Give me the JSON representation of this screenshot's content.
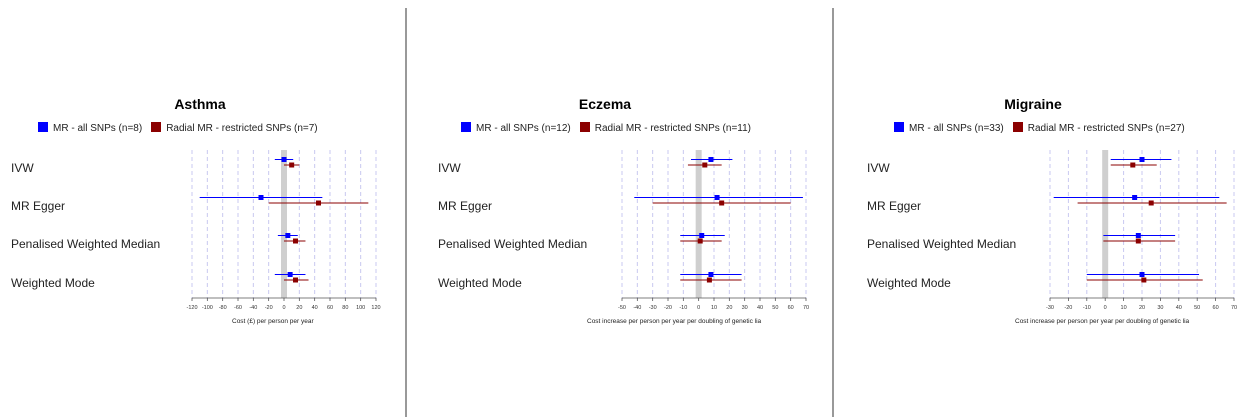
{
  "legend": {
    "series1_color": "#0000ff",
    "series2_color": "#8b0000"
  },
  "methods": [
    "IVW",
    "MR Egger",
    "Penalised Weighted Median",
    "Weighted Mode"
  ],
  "chart_data": [
    {
      "type": "forest",
      "title": "Asthma",
      "xlabel": "Cost (£) per person per year",
      "xlim": [
        -120,
        120
      ],
      "xticks": [
        -120,
        -100,
        -80,
        -60,
        -40,
        -20,
        0,
        20,
        40,
        60,
        80,
        100,
        120
      ],
      "reference_line": 0,
      "grid": true,
      "series": [
        {
          "name": "MR - all SNPs (n=8)",
          "color": "#0000ff",
          "estimates": [
            0,
            -30,
            5,
            8
          ],
          "lower": [
            -12,
            -110,
            -8,
            -12
          ],
          "upper": [
            12,
            50,
            18,
            28
          ]
        },
        {
          "name": "Radial MR - restricted SNPs (n=7)",
          "color": "#8b0000",
          "estimates": [
            10,
            45,
            15,
            15
          ],
          "lower": [
            0,
            -20,
            0,
            0
          ],
          "upper": [
            20,
            110,
            28,
            32
          ]
        }
      ]
    },
    {
      "type": "forest",
      "title": "Eczema",
      "xlabel": "Cost increase per person per year per doubling of genetic lia",
      "xlim": [
        -50,
        70
      ],
      "xticks": [
        -50,
        -40,
        -30,
        -20,
        -10,
        0,
        10,
        20,
        30,
        40,
        50,
        60,
        70
      ],
      "reference_line": 0,
      "grid": true,
      "series": [
        {
          "name": "MR - all SNPs (n=12)",
          "color": "#0000ff",
          "estimates": [
            8,
            12,
            2,
            8
          ],
          "lower": [
            -5,
            -42,
            -12,
            -12
          ],
          "upper": [
            22,
            68,
            17,
            28
          ]
        },
        {
          "name": "Radial MR - restricted SNPs (n=11)",
          "color": "#8b0000",
          "estimates": [
            4,
            15,
            1,
            7
          ],
          "lower": [
            -7,
            -30,
            -12,
            -12
          ],
          "upper": [
            15,
            60,
            15,
            28
          ]
        }
      ]
    },
    {
      "type": "forest",
      "title": "Migraine",
      "xlabel": "Cost increase per person per year per doubling of genetic lia",
      "xlim": [
        -30,
        70
      ],
      "xticks": [
        -30,
        -20,
        -10,
        0,
        10,
        20,
        30,
        40,
        50,
        60,
        70
      ],
      "reference_line": 0,
      "grid": true,
      "series": [
        {
          "name": "MR - all SNPs (n=33)",
          "color": "#0000ff",
          "estimates": [
            20,
            16,
            18,
            20
          ],
          "lower": [
            3,
            -28,
            -1,
            -10
          ],
          "upper": [
            36,
            62,
            38,
            51
          ]
        },
        {
          "name": "Radial MR - restricted SNPs (n=27)",
          "color": "#8b0000",
          "estimates": [
            15,
            25,
            18,
            21
          ],
          "lower": [
            3,
            -15,
            -1,
            -10
          ],
          "upper": [
            28,
            66,
            38,
            53
          ]
        }
      ]
    }
  ]
}
